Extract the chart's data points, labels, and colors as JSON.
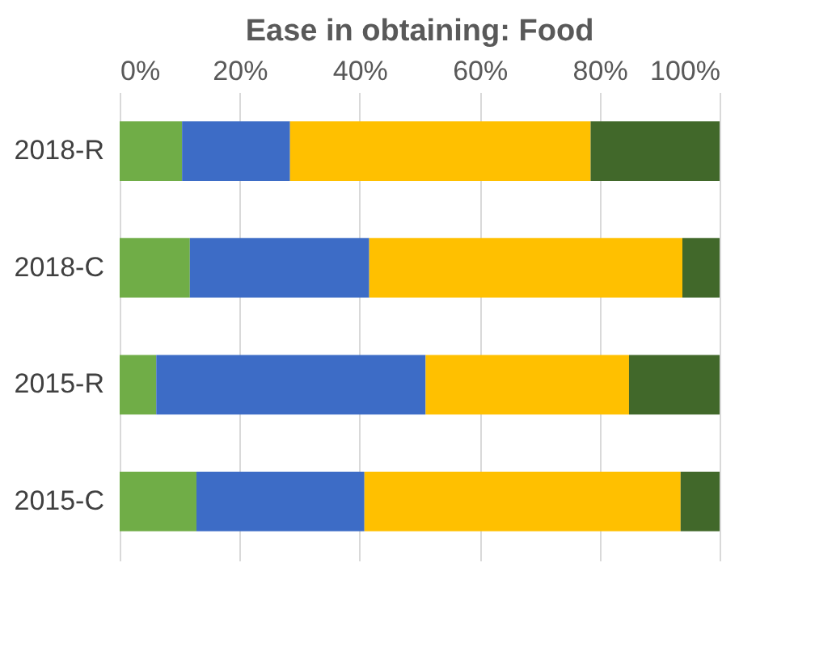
{
  "chart_data": {
    "type": "bar",
    "title": "Ease in obtaining: Food",
    "orientation": "horizontal",
    "stacked": true,
    "categories": [
      "2018-R",
      "2018-C",
      "2015-R",
      "2015-C"
    ],
    "series": [
      {
        "color": "#70ad47",
        "values": [
          10.4,
          11.7,
          6.1,
          12.8
        ]
      },
      {
        "color": "#3d6cc6",
        "values": [
          18.0,
          29.9,
          44.9,
          28.0
        ]
      },
      {
        "color": "#ffc000",
        "values": [
          50.1,
          52.2,
          33.9,
          52.7
        ]
      },
      {
        "color": "#41682a",
        "values": [
          21.5,
          6.2,
          15.1,
          6.5
        ]
      }
    ],
    "xlim": [
      0,
      100
    ],
    "xticks": [
      {
        "value": 0,
        "label": "0%"
      },
      {
        "value": 20,
        "label": "20%"
      },
      {
        "value": 40,
        "label": "40%"
      },
      {
        "value": 60,
        "label": "60%"
      },
      {
        "value": 80,
        "label": "80%"
      },
      {
        "value": 100,
        "label": "100%"
      }
    ],
    "grid": "x",
    "legend": false
  }
}
